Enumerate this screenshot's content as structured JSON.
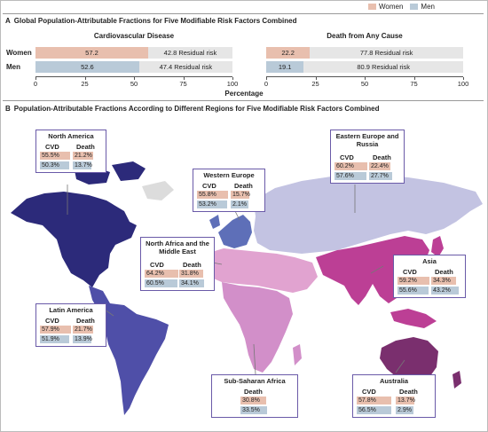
{
  "legend": {
    "women_label": "Women",
    "men_label": "Men",
    "women_color": "#e8bfae",
    "men_color": "#b9cad8",
    "residual_color": "#e6e6e6"
  },
  "panel_a": {
    "letter": "A",
    "title": "Global Population-Attributable Fractions for Five Modifiable Risk Factors Combined",
    "xlabel": "Percentage"
  },
  "panel_b": {
    "letter": "B",
    "title": "Population-Attributable Fractions According to Different Regions for Five Modifiable Risk Factors Combined"
  },
  "chart_data": [
    {
      "type": "bar",
      "orientation": "horizontal",
      "stacked": true,
      "title": "Cardiovascular Disease",
      "categories": [
        "Women",
        "Men"
      ],
      "series": [
        {
          "name": "",
          "values": [
            57.2,
            52.6
          ]
        },
        {
          "name": "Residual risk",
          "values": [
            42.8,
            47.4
          ]
        }
      ],
      "xlim": [
        0,
        100
      ],
      "xticks": [
        0,
        25,
        50,
        75,
        100
      ],
      "xlabel": "Percentage"
    },
    {
      "type": "bar",
      "orientation": "horizontal",
      "stacked": true,
      "title": "Death from Any Cause",
      "categories": [
        "Women",
        "Men"
      ],
      "series": [
        {
          "name": "",
          "values": [
            22.2,
            19.1
          ]
        },
        {
          "name": "Residual risk",
          "values": [
            77.8,
            80.9
          ]
        }
      ],
      "xlim": [
        0,
        100
      ],
      "xticks": [
        0,
        25,
        50,
        75,
        100
      ],
      "xlabel": "Percentage"
    },
    {
      "type": "table",
      "title": "Population-Attributable Fractions According to Different Regions for Five Modifiable Risk Factors Combined",
      "columns": [
        "CVD",
        "Death"
      ],
      "regions": [
        {
          "name": "North America",
          "cvd": {
            "women": 55.5,
            "men": 50.3
          },
          "death": {
            "women": 21.2,
            "men": 13.7
          }
        },
        {
          "name": "Western Europe",
          "cvd": {
            "women": 55.8,
            "men": 53.2
          },
          "death": {
            "women": 15.7,
            "men": 2.1
          }
        },
        {
          "name": "Eastern Europe and Russia",
          "cvd": {
            "women": 60.2,
            "men": 57.6
          },
          "death": {
            "women": 22.4,
            "men": 27.7
          }
        },
        {
          "name": "North Africa and the Middle East",
          "cvd": {
            "women": 64.2,
            "men": 60.5
          },
          "death": {
            "women": 31.8,
            "men": 34.1
          }
        },
        {
          "name": "Asia",
          "cvd": {
            "women": 59.2,
            "men": 55.6
          },
          "death": {
            "women": 34.3,
            "men": 43.2
          }
        },
        {
          "name": "Latin America",
          "cvd": {
            "women": 57.9,
            "men": 51.9
          },
          "death": {
            "women": 21.7,
            "men": 13.9
          }
        },
        {
          "name": "Sub-Saharan Africa",
          "cvd": null,
          "death": {
            "women": 30.8,
            "men": 33.5
          }
        },
        {
          "name": "Australia",
          "cvd": {
            "women": 57.8,
            "men": 56.5
          },
          "death": {
            "women": 13.7,
            "men": 2.9
          }
        }
      ]
    }
  ]
}
